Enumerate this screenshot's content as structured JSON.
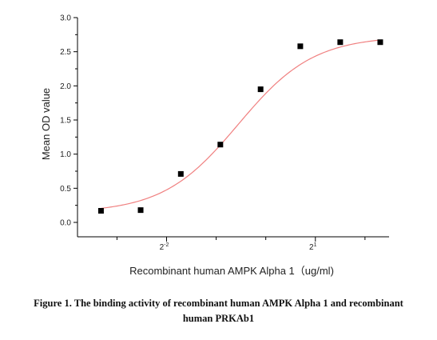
{
  "chart_data": {
    "type": "scatter",
    "xlabel": "Recombinant human  AMPK Alpha 1（ug/ml)",
    "ylabel": "Mean OD value",
    "xscale": "log2",
    "xlim": [
      0.072,
      5.6
    ],
    "ylim": [
      0,
      3.0
    ],
    "yticks": [
      0.0,
      0.5,
      1.0,
      1.5,
      2.0,
      2.5,
      3.0
    ],
    "ytick_labels": [
      "0.0",
      "0.5",
      "1.0",
      "1.5",
      "2.0",
      "2.5",
      "3.0"
    ],
    "xticks_major": [
      {
        "base": "2",
        "exp": "-2",
        "value": 0.25
      },
      {
        "base": "2",
        "exp": "1",
        "value": 2
      }
    ],
    "xticks_minor": [
      0.125,
      0.5,
      1,
      4
    ],
    "grid": false,
    "series": [
      {
        "marker": "square",
        "color": "#000000",
        "x": [
          0.1,
          0.174,
          0.305,
          0.53,
          0.93,
          1.62,
          2.83,
          4.95
        ],
        "y": [
          0.17,
          0.18,
          0.71,
          1.14,
          1.95,
          2.58,
          2.64,
          2.64
        ]
      }
    ],
    "fit_curve": {
      "model": "4PL",
      "color": "#f08080",
      "bottom": 0.14,
      "top": 2.73,
      "ec50": 0.68,
      "hill": 1.9
    }
  },
  "caption": {
    "line1": "Figure 1. The binding activity of recombinant human AMPK Alpha 1 and recombinant",
    "line2": "human PRKAb1"
  }
}
